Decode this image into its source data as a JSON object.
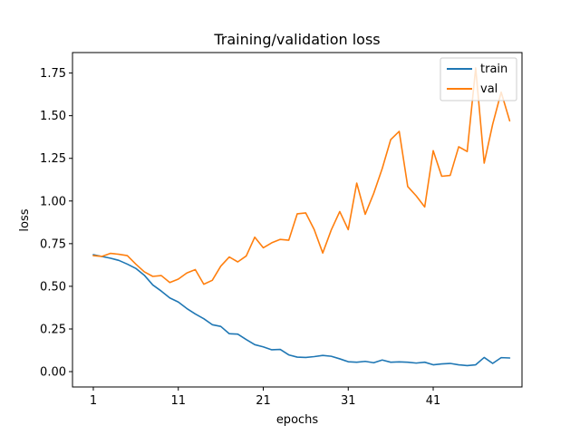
{
  "chart_data": {
    "type": "line",
    "title": "Training/validation loss",
    "xlabel": "epochs",
    "ylabel": "loss",
    "xlim": [
      -1.45,
      51.45
    ],
    "ylim": [
      -0.09,
      1.87
    ],
    "x_ticks": [
      1,
      11,
      21,
      31,
      41
    ],
    "y_ticks": [
      0.0,
      0.25,
      0.5,
      0.75,
      1.0,
      1.25,
      1.5,
      1.75
    ],
    "y_tick_labels": [
      "0.00",
      "0.25",
      "0.50",
      "0.75",
      "1.00",
      "1.25",
      "1.50",
      "1.75"
    ],
    "grid": false,
    "legend": {
      "placement": "top-right"
    },
    "x": [
      1,
      2,
      3,
      4,
      5,
      6,
      7,
      8,
      9,
      10,
      11,
      12,
      13,
      14,
      15,
      16,
      17,
      18,
      19,
      20,
      21,
      22,
      23,
      24,
      25,
      26,
      27,
      28,
      29,
      30,
      31,
      32,
      33,
      34,
      35,
      36,
      37,
      38,
      39,
      40,
      41,
      42,
      43,
      44,
      45,
      46,
      47,
      48,
      49,
      50
    ],
    "series": [
      {
        "name": "train",
        "color": "#1f77b4",
        "values": [
          0.685,
          0.675,
          0.665,
          0.652,
          0.63,
          0.605,
          0.565,
          0.508,
          0.472,
          0.432,
          0.408,
          0.37,
          0.338,
          0.31,
          0.275,
          0.265,
          0.222,
          0.22,
          0.188,
          0.158,
          0.145,
          0.128,
          0.13,
          0.098,
          0.085,
          0.083,
          0.088,
          0.095,
          0.09,
          0.075,
          0.058,
          0.055,
          0.06,
          0.052,
          0.068,
          0.055,
          0.057,
          0.055,
          0.05,
          0.055,
          0.04,
          0.045,
          0.048,
          0.04,
          0.035,
          0.04,
          0.083,
          0.048,
          0.082,
          0.08
        ]
      },
      {
        "name": "val",
        "color": "#ff7f0e",
        "values": [
          0.68,
          0.675,
          0.693,
          0.688,
          0.68,
          0.63,
          0.585,
          0.558,
          0.563,
          0.522,
          0.542,
          0.578,
          0.598,
          0.512,
          0.535,
          0.618,
          0.672,
          0.643,
          0.678,
          0.788,
          0.726,
          0.755,
          0.775,
          0.77,
          0.925,
          0.93,
          0.832,
          0.695,
          0.83,
          0.938,
          0.832,
          1.105,
          0.922,
          1.045,
          1.19,
          1.36,
          1.408,
          1.085,
          1.03,
          0.965,
          1.295,
          1.145,
          1.15,
          1.318,
          1.29,
          1.78,
          1.222,
          1.45,
          1.638,
          1.47
        ]
      }
    ]
  }
}
